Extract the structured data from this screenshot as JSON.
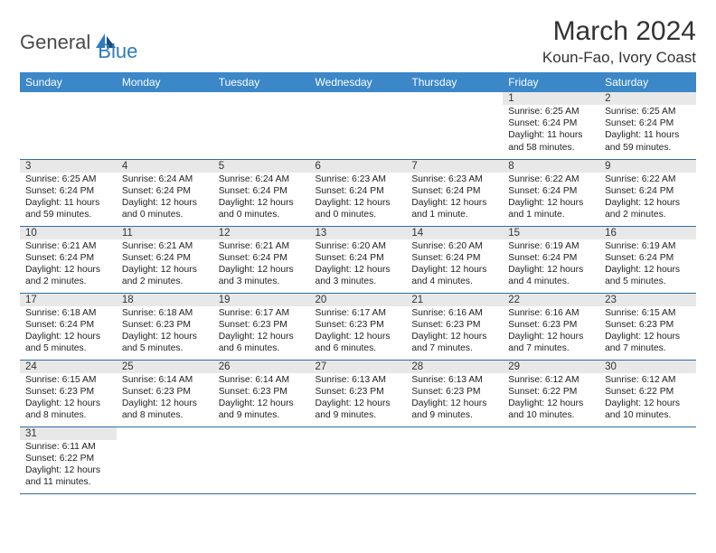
{
  "brand": {
    "part1": "General",
    "part2": "Blue"
  },
  "title": {
    "month": "March 2024",
    "location": "Koun-Fao, Ivory Coast"
  },
  "colors": {
    "header_bg": "#3b87c8",
    "header_fg": "#ffffff",
    "daynum_bg": "#e8e8e8",
    "row_border": "#2e6da4",
    "logo_gray": "#4a4a4a",
    "logo_blue": "#2e7bbf"
  },
  "weekdays": [
    "Sunday",
    "Monday",
    "Tuesday",
    "Wednesday",
    "Thursday",
    "Friday",
    "Saturday"
  ],
  "weeks": [
    [
      {
        "n": "",
        "sr": "",
        "ss": "",
        "dl": ""
      },
      {
        "n": "",
        "sr": "",
        "ss": "",
        "dl": ""
      },
      {
        "n": "",
        "sr": "",
        "ss": "",
        "dl": ""
      },
      {
        "n": "",
        "sr": "",
        "ss": "",
        "dl": ""
      },
      {
        "n": "",
        "sr": "",
        "ss": "",
        "dl": ""
      },
      {
        "n": "1",
        "sr": "Sunrise: 6:25 AM",
        "ss": "Sunset: 6:24 PM",
        "dl": "Daylight: 11 hours and 58 minutes."
      },
      {
        "n": "2",
        "sr": "Sunrise: 6:25 AM",
        "ss": "Sunset: 6:24 PM",
        "dl": "Daylight: 11 hours and 59 minutes."
      }
    ],
    [
      {
        "n": "3",
        "sr": "Sunrise: 6:25 AM",
        "ss": "Sunset: 6:24 PM",
        "dl": "Daylight: 11 hours and 59 minutes."
      },
      {
        "n": "4",
        "sr": "Sunrise: 6:24 AM",
        "ss": "Sunset: 6:24 PM",
        "dl": "Daylight: 12 hours and 0 minutes."
      },
      {
        "n": "5",
        "sr": "Sunrise: 6:24 AM",
        "ss": "Sunset: 6:24 PM",
        "dl": "Daylight: 12 hours and 0 minutes."
      },
      {
        "n": "6",
        "sr": "Sunrise: 6:23 AM",
        "ss": "Sunset: 6:24 PM",
        "dl": "Daylight: 12 hours and 0 minutes."
      },
      {
        "n": "7",
        "sr": "Sunrise: 6:23 AM",
        "ss": "Sunset: 6:24 PM",
        "dl": "Daylight: 12 hours and 1 minute."
      },
      {
        "n": "8",
        "sr": "Sunrise: 6:22 AM",
        "ss": "Sunset: 6:24 PM",
        "dl": "Daylight: 12 hours and 1 minute."
      },
      {
        "n": "9",
        "sr": "Sunrise: 6:22 AM",
        "ss": "Sunset: 6:24 PM",
        "dl": "Daylight: 12 hours and 2 minutes."
      }
    ],
    [
      {
        "n": "10",
        "sr": "Sunrise: 6:21 AM",
        "ss": "Sunset: 6:24 PM",
        "dl": "Daylight: 12 hours and 2 minutes."
      },
      {
        "n": "11",
        "sr": "Sunrise: 6:21 AM",
        "ss": "Sunset: 6:24 PM",
        "dl": "Daylight: 12 hours and 2 minutes."
      },
      {
        "n": "12",
        "sr": "Sunrise: 6:21 AM",
        "ss": "Sunset: 6:24 PM",
        "dl": "Daylight: 12 hours and 3 minutes."
      },
      {
        "n": "13",
        "sr": "Sunrise: 6:20 AM",
        "ss": "Sunset: 6:24 PM",
        "dl": "Daylight: 12 hours and 3 minutes."
      },
      {
        "n": "14",
        "sr": "Sunrise: 6:20 AM",
        "ss": "Sunset: 6:24 PM",
        "dl": "Daylight: 12 hours and 4 minutes."
      },
      {
        "n": "15",
        "sr": "Sunrise: 6:19 AM",
        "ss": "Sunset: 6:24 PM",
        "dl": "Daylight: 12 hours and 4 minutes."
      },
      {
        "n": "16",
        "sr": "Sunrise: 6:19 AM",
        "ss": "Sunset: 6:24 PM",
        "dl": "Daylight: 12 hours and 5 minutes."
      }
    ],
    [
      {
        "n": "17",
        "sr": "Sunrise: 6:18 AM",
        "ss": "Sunset: 6:24 PM",
        "dl": "Daylight: 12 hours and 5 minutes."
      },
      {
        "n": "18",
        "sr": "Sunrise: 6:18 AM",
        "ss": "Sunset: 6:23 PM",
        "dl": "Daylight: 12 hours and 5 minutes."
      },
      {
        "n": "19",
        "sr": "Sunrise: 6:17 AM",
        "ss": "Sunset: 6:23 PM",
        "dl": "Daylight: 12 hours and 6 minutes."
      },
      {
        "n": "20",
        "sr": "Sunrise: 6:17 AM",
        "ss": "Sunset: 6:23 PM",
        "dl": "Daylight: 12 hours and 6 minutes."
      },
      {
        "n": "21",
        "sr": "Sunrise: 6:16 AM",
        "ss": "Sunset: 6:23 PM",
        "dl": "Daylight: 12 hours and 7 minutes."
      },
      {
        "n": "22",
        "sr": "Sunrise: 6:16 AM",
        "ss": "Sunset: 6:23 PM",
        "dl": "Daylight: 12 hours and 7 minutes."
      },
      {
        "n": "23",
        "sr": "Sunrise: 6:15 AM",
        "ss": "Sunset: 6:23 PM",
        "dl": "Daylight: 12 hours and 7 minutes."
      }
    ],
    [
      {
        "n": "24",
        "sr": "Sunrise: 6:15 AM",
        "ss": "Sunset: 6:23 PM",
        "dl": "Daylight: 12 hours and 8 minutes."
      },
      {
        "n": "25",
        "sr": "Sunrise: 6:14 AM",
        "ss": "Sunset: 6:23 PM",
        "dl": "Daylight: 12 hours and 8 minutes."
      },
      {
        "n": "26",
        "sr": "Sunrise: 6:14 AM",
        "ss": "Sunset: 6:23 PM",
        "dl": "Daylight: 12 hours and 9 minutes."
      },
      {
        "n": "27",
        "sr": "Sunrise: 6:13 AM",
        "ss": "Sunset: 6:23 PM",
        "dl": "Daylight: 12 hours and 9 minutes."
      },
      {
        "n": "28",
        "sr": "Sunrise: 6:13 AM",
        "ss": "Sunset: 6:23 PM",
        "dl": "Daylight: 12 hours and 9 minutes."
      },
      {
        "n": "29",
        "sr": "Sunrise: 6:12 AM",
        "ss": "Sunset: 6:22 PM",
        "dl": "Daylight: 12 hours and 10 minutes."
      },
      {
        "n": "30",
        "sr": "Sunrise: 6:12 AM",
        "ss": "Sunset: 6:22 PM",
        "dl": "Daylight: 12 hours and 10 minutes."
      }
    ],
    [
      {
        "n": "31",
        "sr": "Sunrise: 6:11 AM",
        "ss": "Sunset: 6:22 PM",
        "dl": "Daylight: 12 hours and 11 minutes."
      },
      {
        "n": "",
        "sr": "",
        "ss": "",
        "dl": ""
      },
      {
        "n": "",
        "sr": "",
        "ss": "",
        "dl": ""
      },
      {
        "n": "",
        "sr": "",
        "ss": "",
        "dl": ""
      },
      {
        "n": "",
        "sr": "",
        "ss": "",
        "dl": ""
      },
      {
        "n": "",
        "sr": "",
        "ss": "",
        "dl": ""
      },
      {
        "n": "",
        "sr": "",
        "ss": "",
        "dl": ""
      }
    ]
  ]
}
